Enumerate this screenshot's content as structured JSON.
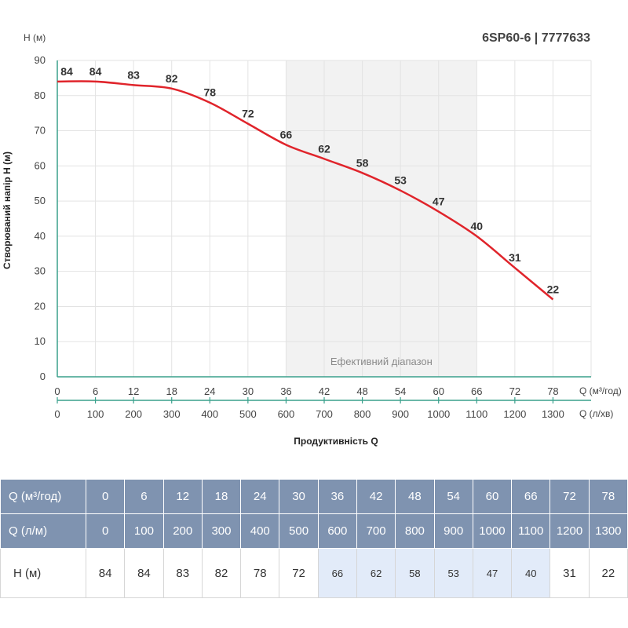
{
  "chart_data": {
    "type": "line",
    "title": "6SP60-6 | 7777633",
    "y_unit_label": "H (м)",
    "ylabel": "Створюваний напір H (м)",
    "xlabel": "Продуктивність Q",
    "x_unit_label": "Q (м³/год)",
    "x2_unit_label": "Q (л/хв)",
    "efficient_range_label": "Ефективний діапазон",
    "efficient_range": [
      36,
      66
    ],
    "x": [
      0,
      6,
      12,
      18,
      24,
      30,
      36,
      42,
      48,
      54,
      60,
      66,
      72,
      78
    ],
    "x2": [
      0,
      100,
      200,
      300,
      400,
      500,
      600,
      700,
      800,
      900,
      1000,
      1100,
      1200,
      1300
    ],
    "series": [
      {
        "values": [
          84,
          84,
          83,
          82,
          78,
          72,
          66,
          62,
          58,
          53,
          47,
          40,
          31,
          22
        ]
      }
    ],
    "xlim": [
      0,
      84
    ],
    "ylim": [
      0,
      90
    ],
    "yticks": [
      0,
      10,
      20,
      30,
      40,
      50,
      60,
      70,
      80,
      90
    ],
    "grid": true,
    "colors": {
      "line": "#e0242b",
      "axis": "#3aa08c",
      "grid": "#e3e3e3",
      "efficient_band": "#f2f2f2"
    }
  },
  "table": {
    "rows": [
      {
        "label": "Q (м³/год)",
        "values": [
          "0",
          "6",
          "12",
          "18",
          "24",
          "30",
          "36",
          "42",
          "48",
          "54",
          "60",
          "66",
          "72",
          "78"
        ]
      },
      {
        "label": "Q (л/м)",
        "values": [
          "0",
          "100",
          "200",
          "300",
          "400",
          "500",
          "600",
          "700",
          "800",
          "900",
          "1000",
          "1100",
          "1200",
          "1300"
        ]
      },
      {
        "label": "H (м)",
        "values": [
          "84",
          "84",
          "83",
          "82",
          "78",
          "72",
          "66",
          "62",
          "58",
          "53",
          "47",
          "40",
          "31",
          "22"
        ]
      }
    ],
    "highlight_color": "#e2ebf9",
    "header_color": "#7f93b0"
  }
}
